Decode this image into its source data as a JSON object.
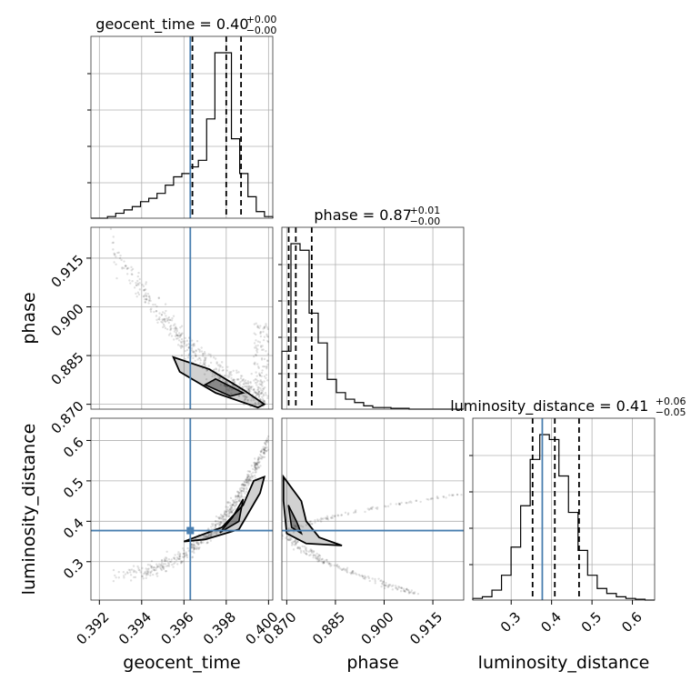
{
  "chart_data": {
    "type": "corner",
    "parameters": [
      {
        "name": "geocent_time",
        "xlabel": "geocent_time",
        "range": [
          0.3916,
          0.4002
        ],
        "truth": 0.3963,
        "quantiles": [
          0.3964,
          0.398,
          0.3987
        ],
        "title_main": "geocent_time = 0.40",
        "title_sup": "+0.00",
        "title_sub": "−0.00",
        "ticks": [
          0.392,
          0.394,
          0.396,
          0.398,
          0.4
        ],
        "tick_labels": [
          "0.392",
          "0.394",
          "0.396",
          "0.398",
          "0.400"
        ],
        "hist": [
          0,
          0,
          0.01,
          0.03,
          0.05,
          0.07,
          0.1,
          0.12,
          0.15,
          0.2,
          0.25,
          0.27,
          0.31,
          0.35,
          0.6,
          1.0,
          1.0,
          0.48,
          0.27,
          0.13,
          0.04,
          0.01
        ]
      },
      {
        "name": "phase",
        "xlabel": "phase",
        "ylabel": "phase",
        "range": [
          0.8685,
          0.9245
        ],
        "truth": null,
        "quantiles": [
          0.8706,
          0.8728,
          0.8777
        ],
        "title_main": "phase = 0.87",
        "title_sup": "+0.01",
        "title_sub": "−0.00",
        "ticks": [
          0.87,
          0.885,
          0.9,
          0.915
        ],
        "tick_labels": [
          "0.870",
          "0.885",
          "0.900",
          "0.915"
        ],
        "hist": [
          0.35,
          1.0,
          0.96,
          0.58,
          0.4,
          0.18,
          0.1,
          0.06,
          0.04,
          0.02,
          0.01,
          0.01,
          0.005,
          0.005,
          0,
          0,
          0,
          0,
          0,
          0
        ]
      },
      {
        "name": "luminosity_distance",
        "xlabel": "luminosity_distance",
        "ylabel": "luminosity_distance",
        "range": [
          0.205,
          0.655
        ],
        "truth": 0.377,
        "quantiles": [
          0.353,
          0.408,
          0.468
        ],
        "title_main": "luminosity_distance = 0.41",
        "title_sup": "+0.06",
        "title_sub": "−0.05",
        "ticks": [
          0.3,
          0.4,
          0.5,
          0.6
        ],
        "tick_labels": [
          "0.3",
          "0.4",
          "0.5",
          "0.6"
        ],
        "hist": [
          0.01,
          0.02,
          0.06,
          0.15,
          0.32,
          0.57,
          0.85,
          1.0,
          0.97,
          0.75,
          0.53,
          0.3,
          0.15,
          0.07,
          0.04,
          0.02,
          0.01,
          0.005,
          0
        ]
      }
    ],
    "grid": true
  }
}
